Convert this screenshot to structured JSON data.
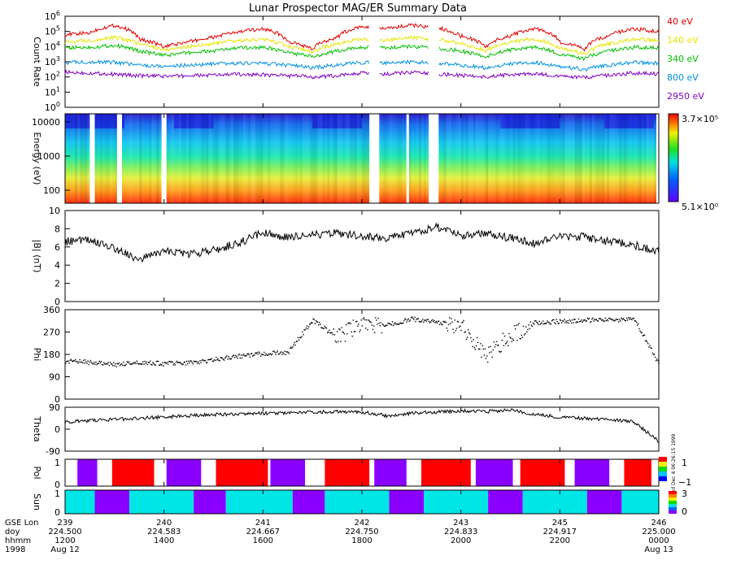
{
  "title": "Lunar Prospector MAG/ER Summary Data",
  "chart_data": [
    {
      "type": "line",
      "panel": "count-rate",
      "ylabel": "Count Rate",
      "yscale": "log",
      "ylim": [
        1,
        1000000
      ],
      "y_tick_exponents": [
        "0",
        "1",
        "2",
        "3",
        "4",
        "5",
        "6"
      ],
      "x": [
        0,
        0.5,
        1,
        1.5,
        2,
        2.5,
        3,
        3.5,
        4,
        4.5,
        5,
        5.5,
        6,
        6.5,
        7,
        7.5,
        8,
        8.5,
        9,
        9.5,
        10,
        10.5,
        11,
        11.5,
        12
      ],
      "gaps": [
        [
          6.15,
          6.35
        ],
        [
          7.35,
          7.55
        ]
      ],
      "series": [
        {
          "name": "40 eV",
          "color": "#e00000",
          "values": [
            60000,
            80000,
            250000,
            30000,
            9000,
            20000,
            40000,
            90000,
            150000,
            20000,
            6000,
            40000,
            200000,
            150000,
            250000,
            180000,
            50000,
            9000,
            50000,
            150000,
            20000,
            6000,
            50000,
            150000,
            90000
          ]
        },
        {
          "name": "140 eV",
          "color": "#e6e600",
          "values": [
            20000,
            25000,
            40000,
            15000,
            6000,
            10000,
            15000,
            25000,
            30000,
            10000,
            4000,
            15000,
            30000,
            25000,
            40000,
            30000,
            15000,
            5000,
            20000,
            30000,
            8000,
            3000,
            15000,
            30000,
            25000
          ]
        },
        {
          "name": "340 eV",
          "color": "#00c000",
          "values": [
            8000,
            9000,
            12000,
            5000,
            2500,
            4000,
            5000,
            8000,
            9000,
            4000,
            2000,
            5000,
            9000,
            8000,
            10000,
            8000,
            5000,
            2000,
            6000,
            9000,
            3000,
            1500,
            5000,
            9000,
            8000
          ]
        },
        {
          "name": "800 eV",
          "color": "#0090e0",
          "values": [
            900,
            1000,
            900,
            600,
            500,
            600,
            700,
            800,
            800,
            600,
            400,
            600,
            900,
            800,
            1000,
            800,
            600,
            400,
            700,
            900,
            500,
            300,
            600,
            900,
            800
          ]
        },
        {
          "name": "2950 eV",
          "color": "#8000c0",
          "values": [
            200,
            180,
            150,
            120,
            110,
            120,
            130,
            150,
            140,
            120,
            100,
            120,
            180,
            150,
            200,
            160,
            130,
            100,
            140,
            160,
            110,
            90,
            130,
            180,
            160
          ]
        }
      ]
    },
    {
      "type": "heatmap",
      "panel": "energy-spectrogram",
      "ylabel": "Energy (eV)",
      "yscale": "log",
      "y_ticks": [
        "10000",
        "1000",
        "100"
      ],
      "colorbar_max": "3.7×10⁵",
      "colorbar_min": "5.1×10⁰",
      "data_gaps_hours": [
        [
          0.5,
          0.6
        ],
        [
          1.05,
          1.15
        ],
        [
          1.95,
          2.05
        ],
        [
          6.15,
          6.35
        ],
        [
          6.9,
          6.95
        ],
        [
          7.35,
          7.55
        ],
        [
          11.95,
          12
        ]
      ]
    },
    {
      "type": "line",
      "panel": "field-magnitude",
      "ylabel": "|B| (nT)",
      "ylim": [
        0,
        10
      ],
      "y_ticks": [
        "0",
        "2",
        "4",
        "6",
        "8",
        "10"
      ],
      "x": [
        0,
        0.5,
        1,
        1.5,
        2,
        2.5,
        3,
        3.5,
        4,
        4.5,
        5,
        5.5,
        6,
        6.5,
        7,
        7.5,
        8,
        8.5,
        9,
        9.5,
        10,
        10.5,
        11,
        11.5,
        12
      ],
      "values": [
        6.6,
        6.8,
        5.8,
        4.6,
        5.6,
        5.2,
        5.6,
        6.4,
        7.6,
        7.0,
        7.3,
        7.5,
        7.2,
        7.0,
        7.4,
        8.2,
        7.3,
        7.5,
        7.0,
        6.4,
        7.2,
        7.1,
        6.6,
        6.2,
        5.5
      ]
    },
    {
      "type": "scatter",
      "panel": "phi",
      "ylabel": "Phi",
      "ylim": [
        0,
        360
      ],
      "y_ticks": [
        "0",
        "90",
        "180",
        "270",
        "360"
      ],
      "x": [
        0,
        0.5,
        1,
        1.5,
        2,
        2.5,
        3,
        3.5,
        4,
        4.5,
        5,
        5.5,
        6,
        6.5,
        7,
        7.5,
        8,
        8.5,
        9,
        9.5,
        10,
        10.5,
        11,
        11.5,
        12
      ],
      "values": [
        155,
        150,
        140,
        150,
        145,
        148,
        160,
        175,
        185,
        190,
        320,
        250,
        310,
        300,
        325,
        310,
        300,
        180,
        260,
        310,
        315,
        320,
        320,
        325,
        140
      ]
    },
    {
      "type": "line",
      "panel": "theta",
      "ylabel": "Theta",
      "ylim": [
        -90,
        90
      ],
      "y_ticks": [
        "-90",
        "0",
        "90"
      ],
      "x": [
        0,
        0.5,
        1,
        1.5,
        2,
        2.5,
        3,
        3.5,
        4,
        4.5,
        5,
        5.5,
        6,
        6.5,
        7,
        7.5,
        8,
        8.5,
        9,
        9.5,
        10,
        10.5,
        11,
        11.5,
        12
      ],
      "values": [
        30,
        35,
        40,
        45,
        50,
        55,
        60,
        62,
        65,
        68,
        70,
        72,
        70,
        55,
        65,
        70,
        75,
        72,
        78,
        60,
        50,
        45,
        40,
        30,
        -50
      ]
    },
    {
      "type": "heatmap",
      "panel": "polarity",
      "ylabel": "Pol",
      "y_ticks": [
        "0",
        "1"
      ],
      "colorbar_max": "1",
      "colorbar_min": "−1",
      "colorbar_note": "Wed Dec 4 06:26:15 1999",
      "segments": [
        {
          "start": 0.25,
          "end": 0.65,
          "value": -1
        },
        {
          "start": 0.95,
          "end": 1.8,
          "value": 1
        },
        {
          "start": 2.05,
          "end": 2.75,
          "value": -1
        },
        {
          "start": 3.05,
          "end": 4.1,
          "value": 1
        },
        {
          "start": 4.15,
          "end": 4.85,
          "value": -1
        },
        {
          "start": 5.25,
          "end": 6.15,
          "value": 1
        },
        {
          "start": 6.25,
          "end": 6.9,
          "value": -1
        },
        {
          "start": 7.2,
          "end": 8.2,
          "value": 1
        },
        {
          "start": 8.3,
          "end": 9.05,
          "value": -1
        },
        {
          "start": 9.2,
          "end": 10.1,
          "value": 1
        },
        {
          "start": 10.3,
          "end": 11.0,
          "value": -1
        },
        {
          "start": 11.3,
          "end": 11.85,
          "value": 1
        }
      ]
    },
    {
      "type": "heatmap",
      "panel": "sun",
      "ylabel": "Sun",
      "y_ticks": [
        "0",
        "1"
      ],
      "colorbar_max": "3",
      "colorbar_min": "0",
      "segments": [
        {
          "start": 0.0,
          "end": 0.6,
          "value": "sun"
        },
        {
          "start": 0.6,
          "end": 1.3,
          "value": "shadow"
        },
        {
          "start": 1.3,
          "end": 2.6,
          "value": "sun"
        },
        {
          "start": 2.6,
          "end": 3.25,
          "value": "shadow"
        },
        {
          "start": 3.25,
          "end": 4.6,
          "value": "sun"
        },
        {
          "start": 4.6,
          "end": 5.25,
          "value": "shadow"
        },
        {
          "start": 5.25,
          "end": 6.55,
          "value": "sun"
        },
        {
          "start": 6.55,
          "end": 7.25,
          "value": "shadow"
        },
        {
          "start": 7.25,
          "end": 8.55,
          "value": "sun"
        },
        {
          "start": 8.55,
          "end": 9.25,
          "value": "shadow"
        },
        {
          "start": 9.25,
          "end": 10.55,
          "value": "sun"
        },
        {
          "start": 10.55,
          "end": 11.25,
          "value": "shadow"
        },
        {
          "start": 11.25,
          "end": 12.0,
          "value": "sun"
        }
      ]
    }
  ],
  "colors": {
    "sun": "#00e6e6",
    "shadow": "#8a00ff",
    "pol_pos": "#ff0000",
    "pol_neg": "#8a00ff"
  },
  "x_axis": {
    "row_labels": [
      "GSE Lon",
      "doy",
      "hhmm",
      "1998"
    ],
    "ticks": [
      {
        "lon": "239",
        "doy": "224.500",
        "hhmm": "1200",
        "date": "Aug 12"
      },
      {
        "lon": "240",
        "doy": "224.583",
        "hhmm": "1400",
        "date": ""
      },
      {
        "lon": "241",
        "doy": "224.667",
        "hhmm": "1600",
        "date": ""
      },
      {
        "lon": "242",
        "doy": "224.750",
        "hhmm": "1800",
        "date": ""
      },
      {
        "lon": "243",
        "doy": "224.833",
        "hhmm": "2000",
        "date": ""
      },
      {
        "lon": "245",
        "doy": "224.917",
        "hhmm": "2200",
        "date": ""
      },
      {
        "lon": "246",
        "doy": "225.000",
        "hhmm": "0000",
        "date": "Aug 13"
      }
    ]
  }
}
